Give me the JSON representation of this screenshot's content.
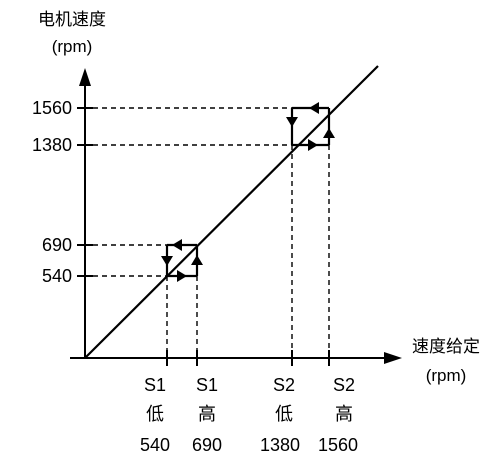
{
  "y_axis": {
    "title": "电机速度",
    "unit": "(rpm)"
  },
  "x_axis": {
    "title": "速度给定",
    "unit": "(rpm)"
  },
  "y_ticks": [
    "1560",
    "1380",
    "690",
    "540"
  ],
  "x_ticks": [
    {
      "name": "S1",
      "level": "低",
      "value": "540"
    },
    {
      "name": "S1",
      "level": "高",
      "value": "690"
    },
    {
      "name": "S2",
      "level": "低",
      "value": "1380"
    },
    {
      "name": "S2",
      "level": "高",
      "value": "1560"
    }
  ]
}
